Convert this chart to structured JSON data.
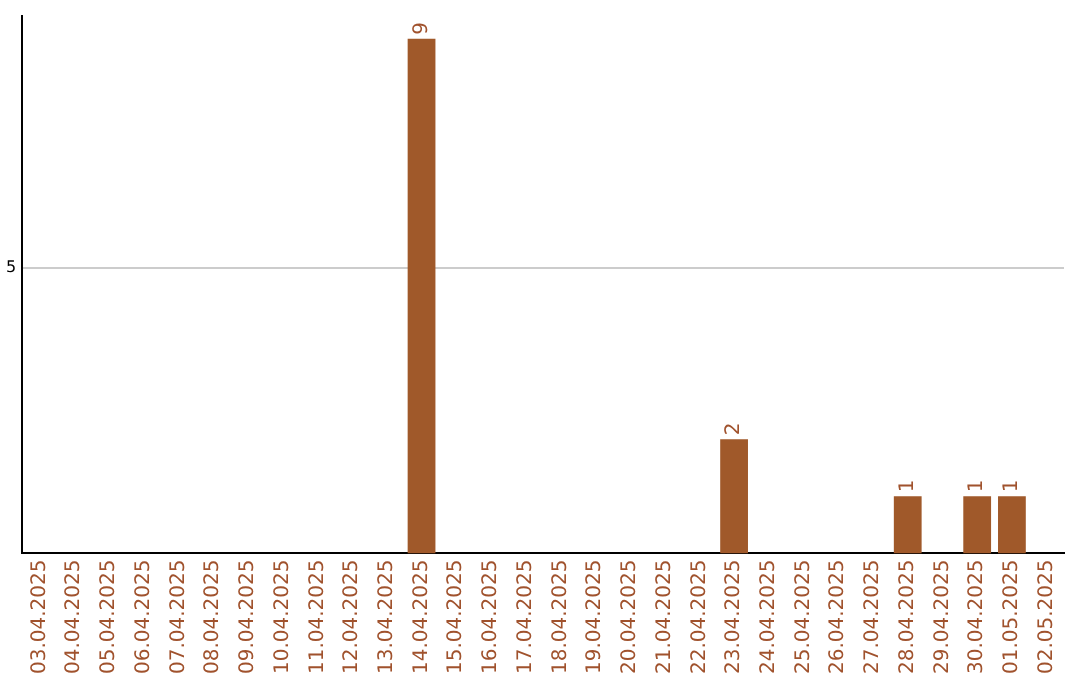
{
  "chart_data": {
    "type": "bar",
    "categories": [
      "03.04.2025",
      "04.04.2025",
      "05.04.2025",
      "06.04.2025",
      "07.04.2025",
      "08.04.2025",
      "09.04.2025",
      "10.04.2025",
      "11.04.2025",
      "12.04.2025",
      "13.04.2025",
      "14.04.2025",
      "15.04.2025",
      "16.04.2025",
      "17.04.2025",
      "18.04.2025",
      "19.04.2025",
      "20.04.2025",
      "21.04.2025",
      "22.04.2025",
      "23.04.2025",
      "24.04.2025",
      "25.04.2025",
      "26.04.2025",
      "27.04.2025",
      "28.04.2025",
      "29.04.2025",
      "30.04.2025",
      "01.05.2025",
      "02.05.2025"
    ],
    "values": [
      0,
      0,
      0,
      0,
      0,
      0,
      0,
      0,
      0,
      0,
      0,
      9,
      0,
      0,
      0,
      0,
      0,
      0,
      0,
      0,
      2,
      0,
      0,
      0,
      0,
      1,
      0,
      1,
      1,
      0
    ],
    "value_labels": [
      null,
      null,
      null,
      null,
      null,
      null,
      null,
      null,
      null,
      null,
      null,
      "9",
      null,
      null,
      null,
      null,
      null,
      null,
      null,
      null,
      "2",
      null,
      null,
      null,
      null,
      "1",
      null,
      "1",
      "1",
      null
    ],
    "color": "#a0592a",
    "ylim": [
      0,
      9.4
    ],
    "yticks": [
      5
    ],
    "grid": "y",
    "legend": false
  }
}
